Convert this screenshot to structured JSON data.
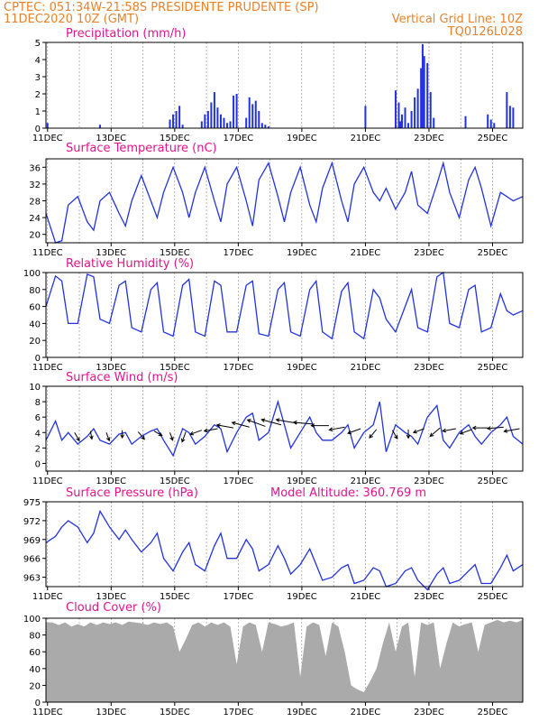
{
  "header": {
    "line1_left": "CPTEC:  051:34W-21:58S  PRESIDENTE PRUDENTE (SP)",
    "line2_left": "11DEC2020 10Z (GMT)",
    "line2_right": "Vertical Grid Line: 10Z",
    "line3_right": "TQ0126L028"
  },
  "colors": {
    "header": "#e8822a",
    "panel_title": "#e0148c",
    "series": "#2233dd",
    "cloud": "#aaaaaa"
  },
  "chart_data": [
    {
      "type": "bar",
      "title": "Precipitation (mm/h)",
      "x_tick_labels": [
        "11DEC",
        "13DEC",
        "15DEC",
        "17DEC",
        "19DEC",
        "21DEC",
        "23DEC",
        "25DEC"
      ],
      "ylim": [
        0,
        5
      ],
      "yticks": [
        0,
        1,
        2,
        3,
        4,
        5
      ],
      "x_days": [
        0.05,
        1.7,
        3.9,
        4.0,
        4.1,
        4.2,
        4.3,
        4.9,
        5.0,
        5.1,
        5.2,
        5.3,
        5.4,
        5.5,
        5.6,
        5.7,
        5.8,
        5.9,
        6.0,
        6.3,
        6.4,
        6.5,
        6.6,
        6.7,
        6.8,
        6.9,
        7.0,
        10.05,
        11.0,
        11.1,
        11.15,
        11.2,
        11.3,
        11.4,
        11.5,
        11.6,
        11.7,
        11.8,
        11.85,
        11.9,
        12.0,
        12.1,
        12.2,
        13.2,
        13.9,
        14.0,
        14.1,
        14.5,
        14.6,
        14.7
      ],
      "values": [
        0.3,
        0.2,
        0.5,
        0.8,
        1.0,
        1.3,
        0.2,
        0.4,
        0.8,
        1.0,
        1.5,
        2.1,
        1.2,
        0.8,
        0.6,
        0.3,
        0.4,
        1.9,
        2.0,
        0.6,
        1.8,
        1.4,
        1.6,
        1.0,
        0.3,
        0.2,
        0.1,
        1.3,
        2.2,
        1.5,
        0.4,
        0.8,
        1.2,
        0.3,
        1.0,
        1.8,
        2.3,
        3.5,
        4.9,
        4.2,
        3.8,
        2.1,
        0.6,
        0.7,
        0.8,
        0.5,
        0.3,
        2.1,
        1.3,
        1.2
      ]
    },
    {
      "type": "line",
      "title": "Surface Temperature (nC)",
      "x_tick_labels": [
        "11DEC",
        "13DEC",
        "15DEC",
        "17DEC",
        "19DEC",
        "21DEC",
        "23DEC",
        "25DEC"
      ],
      "ylim": [
        18,
        38
      ],
      "yticks": [
        20,
        24,
        28,
        32,
        36
      ],
      "x_days": [
        0,
        0.3,
        0.5,
        0.7,
        1.0,
        1.3,
        1.5,
        1.7,
        2.0,
        2.3,
        2.5,
        2.7,
        3.0,
        3.3,
        3.5,
        3.7,
        4.0,
        4.3,
        4.5,
        4.7,
        5.0,
        5.3,
        5.5,
        5.7,
        6.0,
        6.3,
        6.5,
        6.7,
        7.0,
        7.3,
        7.5,
        7.7,
        8.0,
        8.3,
        8.5,
        8.7,
        9.0,
        9.3,
        9.5,
        9.7,
        10.0,
        10.3,
        10.5,
        10.7,
        11.0,
        11.3,
        11.5,
        11.7,
        12.0,
        12.3,
        12.5,
        12.7,
        13.0,
        13.3,
        13.5,
        13.7,
        14.0,
        14.3,
        14.5,
        14.7,
        15.0
      ],
      "values": [
        25,
        18,
        18.5,
        27,
        29,
        23,
        21,
        28,
        30,
        25,
        22,
        28,
        34,
        28,
        24,
        30,
        36,
        30,
        24,
        30,
        36,
        28,
        23,
        32,
        36,
        28,
        22,
        33,
        37,
        29,
        23,
        30,
        36,
        27,
        23,
        31,
        37,
        28,
        23,
        32,
        36,
        30,
        28,
        31,
        26,
        30,
        35,
        27,
        25,
        32,
        37,
        30,
        24,
        33,
        36,
        31,
        22,
        30,
        29,
        28,
        29
      ]
    },
    {
      "type": "line",
      "title": "Relative Humidity (%)",
      "x_tick_labels": [
        "11DEC",
        "13DEC",
        "15DEC",
        "17DEC",
        "19DEC",
        "21DEC",
        "23DEC",
        "25DEC"
      ],
      "ylim": [
        0,
        100
      ],
      "yticks": [
        0,
        20,
        40,
        60,
        80,
        100
      ],
      "x_days": [
        0,
        0.3,
        0.5,
        0.7,
        1.0,
        1.3,
        1.5,
        1.7,
        2.0,
        2.3,
        2.5,
        2.7,
        3.0,
        3.3,
        3.5,
        3.7,
        4.0,
        4.3,
        4.5,
        4.7,
        5.0,
        5.3,
        5.5,
        5.7,
        6.0,
        6.3,
        6.5,
        6.7,
        7.0,
        7.3,
        7.5,
        7.7,
        8.0,
        8.3,
        8.5,
        8.7,
        9.0,
        9.3,
        9.5,
        9.7,
        10.0,
        10.3,
        10.5,
        10.7,
        11.0,
        11.3,
        11.5,
        11.7,
        12.0,
        12.3,
        12.5,
        12.7,
        13.0,
        13.3,
        13.5,
        13.7,
        14.0,
        14.3,
        14.5,
        14.7,
        15.0
      ],
      "values": [
        60,
        96,
        90,
        40,
        40,
        98,
        95,
        45,
        40,
        85,
        90,
        35,
        30,
        80,
        88,
        30,
        25,
        85,
        92,
        30,
        25,
        90,
        85,
        30,
        30,
        85,
        90,
        28,
        25,
        80,
        88,
        30,
        25,
        80,
        90,
        30,
        22,
        78,
        88,
        30,
        22,
        80,
        70,
        45,
        30,
        60,
        80,
        35,
        30,
        95,
        100,
        40,
        35,
        80,
        85,
        30,
        35,
        75,
        55,
        50,
        55
      ]
    },
    {
      "type": "line",
      "title": "Surface Wind (m/s)",
      "x_tick_labels": [
        "11DEC",
        "13DEC",
        "15DEC",
        "17DEC",
        "19DEC",
        "21DEC",
        "23DEC",
        "25DEC"
      ],
      "ylim": [
        -1,
        10
      ],
      "yticks": [
        0,
        2,
        4,
        6,
        8,
        10
      ],
      "x_days": [
        0,
        0.3,
        0.5,
        0.7,
        1.0,
        1.3,
        1.5,
        1.7,
        2.0,
        2.3,
        2.5,
        2.7,
        3.0,
        3.3,
        3.5,
        3.7,
        4.0,
        4.3,
        4.5,
        4.7,
        5.0,
        5.3,
        5.5,
        5.7,
        6.0,
        6.3,
        6.5,
        6.7,
        7.0,
        7.3,
        7.5,
        7.7,
        8.0,
        8.3,
        8.5,
        8.7,
        9.0,
        9.3,
        9.5,
        9.7,
        10.0,
        10.3,
        10.5,
        10.7,
        11.0,
        11.3,
        11.5,
        11.7,
        12.0,
        12.3,
        12.5,
        12.7,
        13.0,
        13.3,
        13.5,
        13.7,
        14.0,
        14.3,
        14.5,
        14.7,
        15.0
      ],
      "values": [
        3,
        5.5,
        3,
        4,
        2.5,
        3.5,
        4.5,
        3,
        2.5,
        3.8,
        4,
        2.5,
        3.5,
        4.2,
        4.5,
        3,
        1,
        4.5,
        4,
        2.5,
        3.5,
        5,
        4.5,
        1.5,
        4,
        6,
        6.5,
        3,
        4,
        8,
        5,
        2,
        4,
        6,
        4,
        3,
        3,
        4,
        5,
        2,
        4,
        5,
        8,
        1.5,
        5,
        4,
        3.5,
        2.5,
        6,
        7.5,
        3,
        2,
        4,
        5,
        3.5,
        2.5,
        4,
        5,
        6,
        3.5,
        2.5
      ],
      "wind_vectors": {
        "x_days": [
          0.9,
          1.4,
          1.9,
          2.4,
          2.9,
          3.4,
          3.9,
          4.4,
          4.9,
          5.4,
          5.9,
          6.4,
          6.9,
          7.4,
          7.9,
          8.4,
          8.9,
          9.4,
          9.9,
          10.4,
          10.9,
          11.4,
          11.9,
          12.4,
          12.9,
          13.4,
          13.9,
          14.4,
          14.9
        ],
        "y": [
          4.0,
          4.2,
          4.0,
          4.3,
          4.1,
          4.2,
          4.0,
          4.1,
          4.3,
          4.5,
          4.6,
          4.7,
          4.8,
          5.0,
          5.2,
          5.1,
          4.9,
          4.7,
          4.5,
          4.4,
          4.3,
          4.4,
          4.5,
          4.6,
          4.5,
          4.4,
          4.6,
          4.7,
          4.5
        ],
        "speed": [
          2.5,
          2.0,
          2.2,
          1.8,
          2.6,
          2.4,
          2.0,
          3.0,
          3.5,
          4.0,
          5.2,
          5.6,
          6.0,
          6.5,
          6.8,
          6.2,
          5.5,
          4.8,
          4.0,
          3.0,
          2.6,
          2.2,
          3.2,
          3.8,
          4.0,
          3.6,
          4.5,
          5.0,
          4.8
        ],
        "dir_deg": [
          300,
          280,
          290,
          270,
          310,
          330,
          290,
          250,
          200,
          190,
          170,
          165,
          160,
          165,
          170,
          175,
          180,
          190,
          200,
          230,
          300,
          270,
          200,
          220,
          190,
          200,
          180,
          185,
          190
        ]
      }
    },
    {
      "type": "line",
      "title": "Surface Pressure (hPa)",
      "annotation": "Model Altitude: 360.769 m",
      "x_tick_labels": [
        "11DEC",
        "13DEC",
        "15DEC",
        "17DEC",
        "19DEC",
        "21DEC",
        "23DEC",
        "25DEC"
      ],
      "ylim": [
        961.5,
        975
      ],
      "yticks": [
        963,
        966,
        969,
        972,
        975
      ],
      "x_days": [
        0,
        0.3,
        0.5,
        0.7,
        1.0,
        1.3,
        1.5,
        1.7,
        2.0,
        2.3,
        2.5,
        2.7,
        3.0,
        3.3,
        3.5,
        3.7,
        4.0,
        4.3,
        4.5,
        4.7,
        5.0,
        5.3,
        5.5,
        5.7,
        6.0,
        6.3,
        6.5,
        6.7,
        7.0,
        7.3,
        7.5,
        7.7,
        8.0,
        8.3,
        8.5,
        8.7,
        9.0,
        9.3,
        9.5,
        9.7,
        10.0,
        10.3,
        10.5,
        10.7,
        11.0,
        11.3,
        11.5,
        11.7,
        12.0,
        12.3,
        12.5,
        12.7,
        13.0,
        13.3,
        13.5,
        13.7,
        14.0,
        14.3,
        14.5,
        14.7,
        15.0
      ],
      "values": [
        968.5,
        969.5,
        971,
        972,
        971,
        968.5,
        970,
        973.5,
        971,
        969,
        970.5,
        969,
        967,
        968.5,
        970,
        966,
        964,
        967,
        968.5,
        965,
        964,
        968,
        970,
        966,
        966,
        969,
        967.5,
        964,
        965,
        968,
        966,
        963.5,
        965,
        967.5,
        965,
        962.5,
        963,
        964.5,
        965,
        962,
        962.5,
        964.5,
        964,
        961.5,
        962,
        964,
        964.5,
        962.5,
        961,
        963.5,
        964.5,
        962,
        962.5,
        964,
        965,
        962,
        962,
        964.5,
        966.5,
        964,
        965
      ]
    },
    {
      "type": "area",
      "title": "Cloud Cover (%)",
      "x_tick_labels": [
        "11DEC",
        "13DEC",
        "15DEC",
        "17DEC",
        "19DEC",
        "21DEC",
        "23DEC",
        "25DEC"
      ],
      "ylim": [
        0,
        100
      ],
      "yticks": [
        0,
        20,
        40,
        60,
        80,
        100
      ],
      "x_days": [
        0,
        0.2,
        0.4,
        0.6,
        0.8,
        1.0,
        1.2,
        1.4,
        1.6,
        1.8,
        2.0,
        2.2,
        2.4,
        2.6,
        2.8,
        3.0,
        3.2,
        3.4,
        3.6,
        3.8,
        4.0,
        4.2,
        4.4,
        4.6,
        4.8,
        5.0,
        5.2,
        5.4,
        5.6,
        5.8,
        6.0,
        6.2,
        6.4,
        6.6,
        6.8,
        7.0,
        7.2,
        7.4,
        7.6,
        7.8,
        8.0,
        8.2,
        8.4,
        8.6,
        8.8,
        9.0,
        9.2,
        9.4,
        9.6,
        9.8,
        10.0,
        10.2,
        10.4,
        10.6,
        10.8,
        11.0,
        11.2,
        11.4,
        11.6,
        11.8,
        12.0,
        12.2,
        12.4,
        12.6,
        12.8,
        13.0,
        13.2,
        13.4,
        13.6,
        13.8,
        14.0,
        14.2,
        14.4,
        14.6,
        14.8,
        15.0
      ],
      "values": [
        95,
        95,
        92,
        95,
        90,
        93,
        90,
        95,
        92,
        95,
        93,
        95,
        92,
        96,
        95,
        94,
        92,
        95,
        93,
        95,
        90,
        60,
        75,
        92,
        95,
        90,
        95,
        92,
        95,
        90,
        45,
        90,
        95,
        92,
        60,
        95,
        93,
        90,
        92,
        95,
        30,
        90,
        95,
        92,
        55,
        95,
        90,
        60,
        20,
        15,
        12,
        25,
        40,
        70,
        95,
        60,
        90,
        95,
        30,
        95,
        92,
        95,
        40,
        70,
        95,
        90,
        93,
        95,
        60,
        92,
        95,
        98,
        95,
        97,
        95,
        98
      ]
    }
  ]
}
